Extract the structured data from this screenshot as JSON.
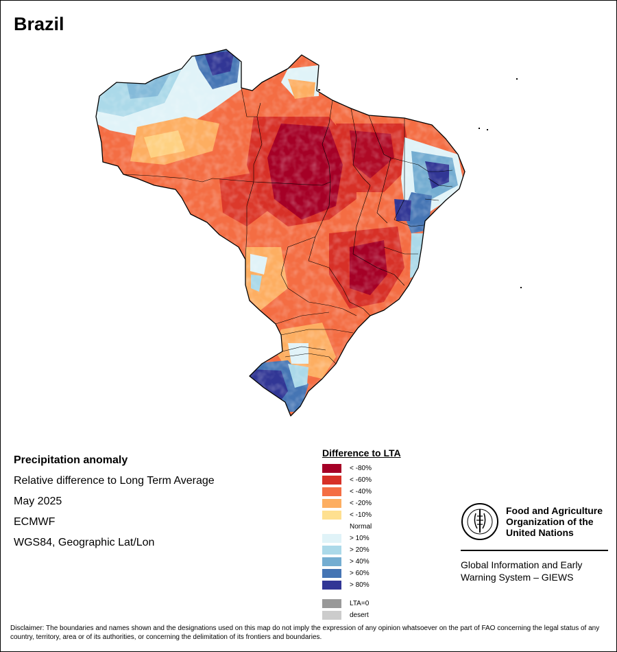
{
  "title": "Brazil",
  "info": {
    "heading": "Precipitation anomaly",
    "line1": "Relative difference to Long Term Average",
    "line2": "May 2025",
    "line3": "ECMWF",
    "line4": "WGS84, Geographic Lat/Lon"
  },
  "legend": {
    "title": "Difference to LTA",
    "items": [
      {
        "label": "< -80%",
        "color": "#a50026"
      },
      {
        "label": "< -60%",
        "color": "#d73027"
      },
      {
        "label": "< -40%",
        "color": "#f46d43"
      },
      {
        "label": "< -20%",
        "color": "#fdae61"
      },
      {
        "label": "< -10%",
        "color": "#fee090"
      },
      {
        "label": "Normal",
        "color": "#ffffff"
      },
      {
        "label": "> 10%",
        "color": "#e0f3f8"
      },
      {
        "label": "> 20%",
        "color": "#abd9e9"
      },
      {
        "label": "> 40%",
        "color": "#74add1"
      },
      {
        "label": "> 60%",
        "color": "#4575b4"
      },
      {
        "label": "> 80%",
        "color": "#313695"
      }
    ],
    "extra": [
      {
        "label": "LTA=0",
        "color": "#999999"
      },
      {
        "label": "desert",
        "color": "#cccccc"
      }
    ]
  },
  "logo": {
    "org_name": "Food and Agriculture Organization of the United Nations",
    "system": "Global Information and Early Warning System – GIEWS"
  },
  "disclaimer": "Disclaimer: The boundaries and names shown and the designations used on this map do not imply the expression of any opinion whatsoever on the part of FAO concerning the legal status of any country, territory, area or of its authorities, or concerning the delimitation of its frontiers and boundaries."
}
